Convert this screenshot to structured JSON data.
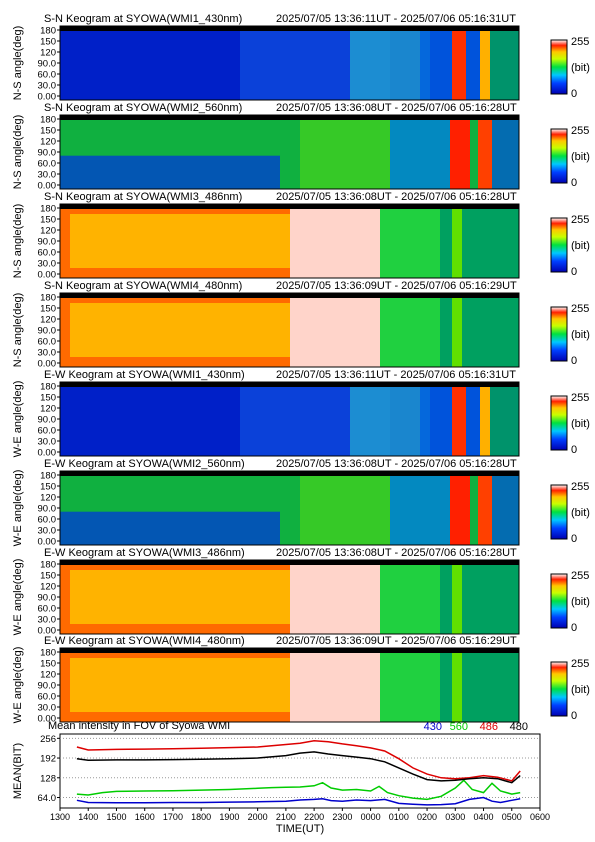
{
  "chart_data": [
    {
      "type": "heatmap",
      "title": "S-N Keogram at SYOWA(WMI1_430nm)",
      "time_range": "2025/07/05 13:36:11UT - 2025/07/06 05:16:31UT",
      "ylabel": "N-S angle(deg)",
      "y_ticks": [
        "0.00",
        "30.0",
        "60.0",
        "90.0",
        "120",
        "150",
        "180"
      ],
      "ylim": [
        0,
        180
      ],
      "colorbar": {
        "max": "255",
        "unit": "(bit)",
        "min": "0"
      },
      "profile": "low"
    },
    {
      "type": "heatmap",
      "title": "S-N Keogram at SYOWA(WMI2_560nm)",
      "time_range": "2025/07/05 13:36:08UT - 2025/07/06 05:16:28UT",
      "ylabel": "N-S angle(deg)",
      "y_ticks": [
        "0.00",
        "30.0",
        "60.0",
        "90.0",
        "120",
        "150",
        "180"
      ],
      "ylim": [
        0,
        180
      ],
      "colorbar": {
        "max": "255",
        "unit": "(bit)",
        "min": "0"
      },
      "profile": "mid"
    },
    {
      "type": "heatmap",
      "title": "S-N Keogram at SYOWA(WMI3_486nm)",
      "time_range": "2025/07/05 13:36:08UT - 2025/07/06 05:16:28UT",
      "ylabel": "N-S angle(deg)",
      "y_ticks": [
        "0.00",
        "30.0",
        "60.0",
        "90.0",
        "120",
        "150",
        "180"
      ],
      "ylim": [
        0,
        180
      ],
      "colorbar": {
        "max": "255",
        "unit": "(bit)",
        "min": "0"
      },
      "profile": "high"
    },
    {
      "type": "heatmap",
      "title": "S-N Keogram at SYOWA(WMI4_480nm)",
      "time_range": "2025/07/05 13:36:09UT - 2025/07/06 05:16:29UT",
      "ylabel": "N-S angle(deg)",
      "y_ticks": [
        "0.00",
        "30.0",
        "60.0",
        "90.0",
        "120",
        "150",
        "180"
      ],
      "ylim": [
        0,
        180
      ],
      "colorbar": {
        "max": "255",
        "unit": "(bit)",
        "min": "0"
      },
      "profile": "high"
    },
    {
      "type": "heatmap",
      "title": "E-W Keogram at SYOWA(WMI1_430nm)",
      "time_range": "2025/07/05 13:36:11UT - 2025/07/06 05:16:31UT",
      "ylabel": "W-E angle(deg)",
      "y_ticks": [
        "0.00",
        "30.0",
        "60.0",
        "90.0",
        "120",
        "150",
        "180"
      ],
      "ylim": [
        0,
        180
      ],
      "colorbar": {
        "max": "255",
        "unit": "(bit)",
        "min": "0"
      },
      "profile": "low"
    },
    {
      "type": "heatmap",
      "title": "E-W Keogram at SYOWA(WMI2_560nm)",
      "time_range": "2025/07/05 13:36:08UT - 2025/07/06 05:16:28UT",
      "ylabel": "W-E angle(deg)",
      "y_ticks": [
        "0.00",
        "30.0",
        "60.0",
        "90.0",
        "120",
        "150",
        "180"
      ],
      "ylim": [
        0,
        180
      ],
      "colorbar": {
        "max": "255",
        "unit": "(bit)",
        "min": "0"
      },
      "profile": "mid"
    },
    {
      "type": "heatmap",
      "title": "E-W Keogram at SYOWA(WMI3_486nm)",
      "time_range": "2025/07/05 13:36:08UT - 2025/07/06 05:16:28UT",
      "ylabel": "W-E angle(deg)",
      "y_ticks": [
        "0.00",
        "30.0",
        "60.0",
        "90.0",
        "120",
        "150",
        "180"
      ],
      "ylim": [
        0,
        180
      ],
      "colorbar": {
        "max": "255",
        "unit": "(bit)",
        "min": "0"
      },
      "profile": "high"
    },
    {
      "type": "heatmap",
      "title": "E-W Keogram at SYOWA(WMI4_480nm)",
      "time_range": "2025/07/05 13:36:09UT - 2025/07/06 05:16:29UT",
      "ylabel": "W-E angle(deg)",
      "y_ticks": [
        "0.00",
        "30.0",
        "60.0",
        "90.0",
        "120",
        "150",
        "180"
      ],
      "ylim": [
        0,
        180
      ],
      "colorbar": {
        "max": "255",
        "unit": "(bit)",
        "min": "0"
      },
      "profile": "high"
    },
    {
      "type": "line",
      "title": "Mean intensity in FOV of Syowa WMI",
      "ylabel": "MEAN(BIT)",
      "xlabel": "TIME(UT)",
      "y_ticks": [
        "64.0",
        "128",
        "192",
        "256"
      ],
      "ylim": [
        30,
        270
      ],
      "x_ticks": [
        "1300",
        "1400",
        "1500",
        "1600",
        "1700",
        "1800",
        "1900",
        "2000",
        "2100",
        "2200",
        "2300",
        "0000",
        "0100",
        "0200",
        "0300",
        "0400",
        "0500",
        "0600"
      ],
      "xlim": [
        13.0,
        30.0
      ],
      "series": [
        {
          "name": "430",
          "color": "#0000cc",
          "x": [
            13.6,
            14.0,
            15.0,
            16.0,
            17.0,
            18.0,
            19.0,
            20.0,
            21.0,
            21.5,
            22.0,
            22.3,
            22.6,
            23.0,
            23.5,
            24.0,
            24.5,
            25.0,
            25.5,
            26.0,
            26.5,
            27.0,
            27.5,
            28.0,
            28.3,
            28.6,
            29.0,
            29.3
          ],
          "y": [
            55,
            48,
            47,
            47,
            48,
            48,
            49,
            50,
            52,
            56,
            58,
            60,
            54,
            52,
            56,
            54,
            58,
            45,
            42,
            40,
            41,
            44,
            58,
            64,
            52,
            48,
            55,
            60
          ]
        },
        {
          "name": "560",
          "color": "#00cc00",
          "x": [
            13.6,
            14.0,
            14.5,
            15.0,
            16.0,
            17.0,
            18.0,
            19.0,
            20.0,
            20.5,
            21.0,
            21.5,
            22.0,
            22.3,
            22.6,
            23.0,
            23.5,
            24.0,
            24.3,
            24.6,
            25.0,
            25.5,
            26.0,
            26.5,
            27.0,
            27.3,
            27.6,
            28.0,
            28.3,
            28.6,
            29.0,
            29.3
          ],
          "y": [
            75,
            72,
            80,
            84,
            85,
            86,
            88,
            90,
            94,
            96,
            97,
            98,
            102,
            112,
            95,
            88,
            90,
            85,
            100,
            80,
            70,
            62,
            58,
            68,
            95,
            120,
            90,
            80,
            110,
            85,
            75,
            80
          ]
        },
        {
          "name": "486",
          "color": "#dd0000",
          "x": [
            13.6,
            14.0,
            15.0,
            16.0,
            17.0,
            18.0,
            19.0,
            20.0,
            21.0,
            21.5,
            22.0,
            22.5,
            23.0,
            23.5,
            24.0,
            24.5,
            25.0,
            25.5,
            26.0,
            26.5,
            27.0,
            27.5,
            28.0,
            28.5,
            29.0,
            29.3
          ],
          "y": [
            228,
            218,
            220,
            221,
            222,
            224,
            226,
            228,
            236,
            240,
            248,
            245,
            238,
            232,
            225,
            215,
            190,
            160,
            140,
            128,
            125,
            128,
            135,
            130,
            118,
            150
          ]
        },
        {
          "name": "480",
          "color": "#000000",
          "x": [
            13.6,
            14.0,
            15.0,
            16.0,
            17.0,
            18.0,
            19.0,
            20.0,
            21.0,
            21.5,
            22.0,
            22.5,
            23.0,
            23.5,
            24.0,
            24.5,
            25.0,
            25.5,
            26.0,
            26.5,
            27.0,
            27.5,
            28.0,
            28.5,
            29.0,
            29.3
          ],
          "y": [
            190,
            185,
            186,
            186,
            187,
            188,
            190,
            192,
            200,
            208,
            212,
            205,
            200,
            195,
            190,
            180,
            160,
            140,
            122,
            118,
            120,
            125,
            128,
            125,
            112,
            135
          ]
        }
      ]
    }
  ]
}
